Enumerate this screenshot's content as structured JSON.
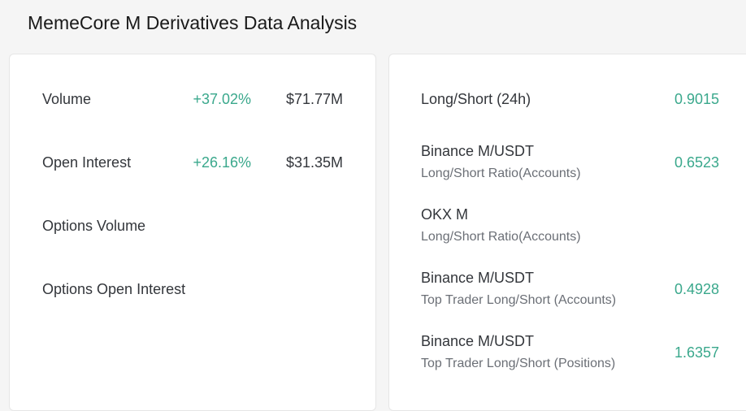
{
  "page": {
    "title": "MemeCore M Derivatives Data Analysis"
  },
  "colors": {
    "positive": "#3aa88c",
    "text": "#33363b",
    "subtext": "#6b6f76",
    "background": "#f5f5f5",
    "card": "#ffffff"
  },
  "left_card": {
    "rows": [
      {
        "label": "Volume",
        "change": "+37.02%",
        "value": "$71.77M"
      },
      {
        "label": "Open Interest",
        "change": "+26.16%",
        "value": "$31.35M"
      },
      {
        "label": "Options Volume",
        "change": "",
        "value": ""
      },
      {
        "label": "Options Open Interest",
        "change": "",
        "value": ""
      }
    ]
  },
  "right_card": {
    "rows": [
      {
        "line1": "Long/Short (24h)",
        "line2": "",
        "value": "0.9015"
      },
      {
        "line1": "Binance M/USDT",
        "line2": "Long/Short Ratio(Accounts)",
        "value": "0.6523"
      },
      {
        "line1": "OKX M",
        "line2": "Long/Short Ratio(Accounts)",
        "value": ""
      },
      {
        "line1": "Binance M/USDT",
        "line2": "Top Trader Long/Short (Accounts)",
        "value": "0.4928"
      },
      {
        "line1": "Binance M/USDT",
        "line2": "Top Trader Long/Short (Positions)",
        "value": "1.6357"
      }
    ]
  }
}
